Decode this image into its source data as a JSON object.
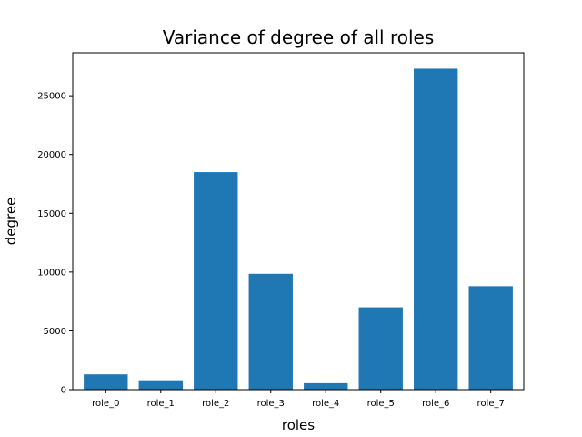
{
  "chart_data": {
    "type": "bar",
    "title": "Variance of degree of all roles",
    "xlabel": "roles",
    "ylabel": "degree",
    "categories": [
      "role_0",
      "role_1",
      "role_2",
      "role_3",
      "role_4",
      "role_5",
      "role_6",
      "role_7"
    ],
    "values": [
      1300,
      800,
      18500,
      9850,
      550,
      7000,
      27300,
      8800
    ],
    "ylim": [
      0,
      28650
    ],
    "yticks": [
      0,
      5000,
      10000,
      15000,
      20000,
      25000
    ],
    "grid": false,
    "bar_color": "#1f77b4"
  }
}
